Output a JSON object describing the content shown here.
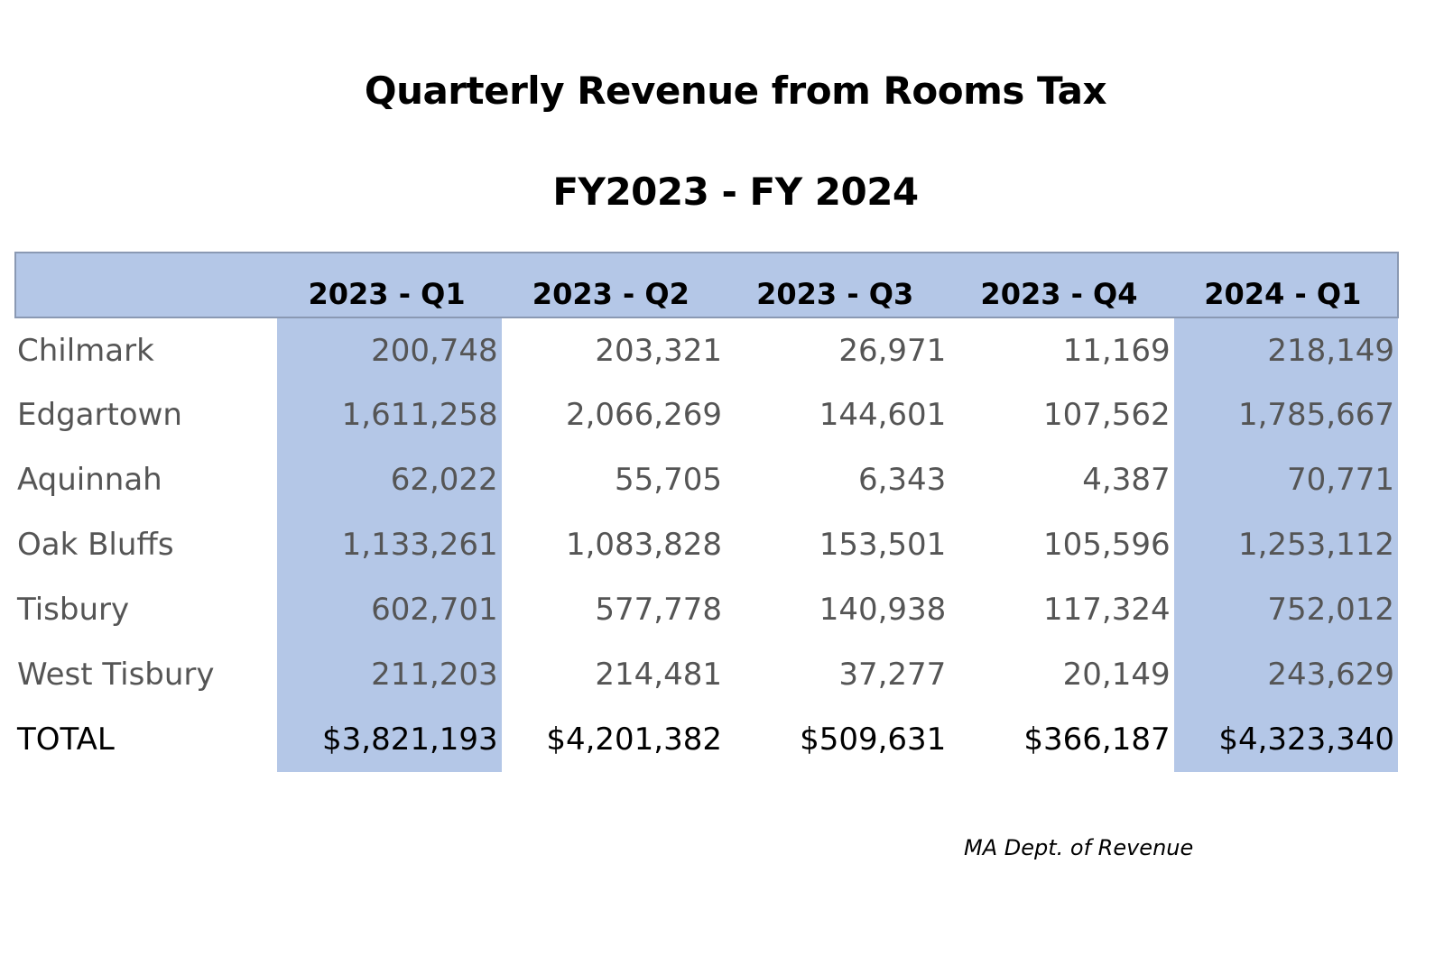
{
  "chart_data": {
    "type": "table",
    "title": "Quarterly Revenue from Rooms Tax",
    "subtitle": "FY2023 - FY 2024",
    "columns": [
      "2023 - Q1",
      "2023 - Q2",
      "2023 - Q3",
      "2023 - Q4",
      "2024 - Q1"
    ],
    "rows": [
      {
        "town": "Chilmark",
        "values": [
          "200,748",
          "203,321",
          "26,971",
          "11,169",
          "218,149"
        ]
      },
      {
        "town": "Edgartown",
        "values": [
          "1,611,258",
          "2,066,269",
          "144,601",
          "107,562",
          "1,785,667"
        ]
      },
      {
        "town": "Aquinnah",
        "values": [
          "62,022",
          "55,705",
          "6,343",
          "4,387",
          "70,771"
        ]
      },
      {
        "town": "Oak Bluffs",
        "values": [
          "1,133,261",
          "1,083,828",
          "153,501",
          "105,596",
          "1,253,112"
        ]
      },
      {
        "town": "Tisbury",
        "values": [
          "602,701",
          "577,778",
          "140,938",
          "117,324",
          "752,012"
        ]
      },
      {
        "town": "West Tisbury",
        "values": [
          "211,203",
          "214,481",
          "37,277",
          "20,149",
          "243,629"
        ]
      }
    ],
    "total": {
      "label": "TOTAL",
      "values": [
        "$3,821,193",
        "$4,201,382",
        "$509,631",
        "$366,187",
        "$4,323,340"
      ]
    },
    "highlighted_columns": [
      "2023 - Q1",
      "2024 - Q1"
    ],
    "source": "MA Dept. of Revenue"
  },
  "colors": {
    "header_fill": "#b4c7e7",
    "highlight_fill": "#b4c7e7",
    "body_text": "#555555",
    "total_text": "#000000"
  }
}
